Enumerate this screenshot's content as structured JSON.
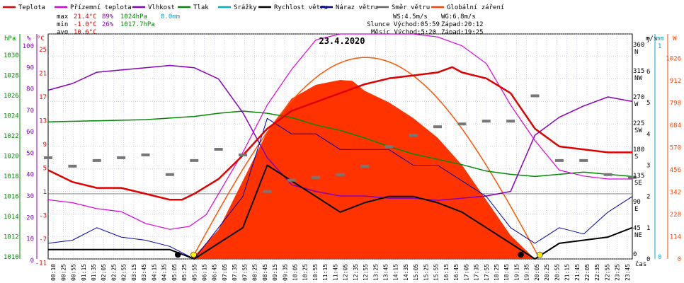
{
  "chart_data": {
    "type": "line",
    "title": "23.4.2020",
    "legend": [
      {
        "label": "Teplota",
        "color": "#e00000"
      },
      {
        "label": "Přízemní teplota",
        "color": "#dd00dd"
      },
      {
        "label": "Vlhkost",
        "color": "#8800bb"
      },
      {
        "label": "Tlak",
        "color": "#008800"
      },
      {
        "label": "Srážky",
        "color": "#00aacc"
      },
      {
        "label": "Rychlost větru",
        "color": "#000000"
      },
      {
        "label": "Náraz větru",
        "color": "#0000aa"
      },
      {
        "label": "Směr větru",
        "color": "#666666"
      },
      {
        "label": "Globální záření",
        "color": "#ff4400"
      }
    ],
    "stats": {
      "max": {
        "label": "max",
        "temp": "21.4°C",
        "hum": "89%",
        "press": "1024hPa",
        "rain": "0.0mm"
      },
      "min": {
        "label": "min",
        "temp": "-1.0°C",
        "hum": "26%",
        "press": "1017.7hPa"
      },
      "avg": {
        "label": "avg",
        "temp": "10.6°C"
      }
    },
    "info": {
      "ws": "WS:4.5m/s",
      "wg": "WG:6.8m/s",
      "sun": "Slunce Východ:05:59",
      "sunset": "Západ:20:12",
      "moon": "Měsíc Východ:5:20",
      "moonset": "Západ:19:25"
    },
    "axes": {
      "left_units": {
        "hpa": "hPa",
        "pct": "%",
        "degc": "°C"
      },
      "right_units": {
        "ms": "m/s",
        "mm": "mm",
        "w": "W"
      },
      "x_label": "čas",
      "hpa_ticks": [
        "1030",
        "1028",
        "1026",
        "1024",
        "1022",
        "1020",
        "1018",
        "1016",
        "1014",
        "1012",
        "1010"
      ],
      "pct_ticks": [
        "100",
        "90",
        "80",
        "70",
        "60",
        "50",
        "40",
        "30",
        "20",
        "10",
        "0"
      ],
      "degc_ticks": [
        "25",
        "21",
        "17",
        "13",
        "9",
        "5",
        "1",
        "-3",
        "-7",
        "-11"
      ],
      "degc_extra": [
        "23",
        "19",
        "15",
        "11",
        "7",
        "3",
        "-1",
        "-5",
        "-9"
      ],
      "dir_ticks": [
        {
          "deg": "360",
          "lbl": "N"
        },
        {
          "deg": "315",
          "lbl": "NW"
        },
        {
          "deg": "270",
          "lbl": "W"
        },
        {
          "deg": "225",
          "lbl": "SW"
        },
        {
          "deg": "180",
          "lbl": "S"
        },
        {
          "deg": "135",
          "lbl": "SE"
        },
        {
          "deg": "90",
          "lbl": "E"
        },
        {
          "deg": "45",
          "lbl": "NE"
        },
        {
          "deg": "0",
          "lbl": ""
        }
      ],
      "ms_ticks": [
        "7",
        "6",
        "5",
        "4",
        "3",
        "2",
        "1",
        "0"
      ],
      "mm_ticks": [
        "1",
        "0"
      ],
      "w_ticks": [
        "1026",
        "912",
        "798",
        "684",
        "570",
        "456",
        "342",
        "228",
        "114",
        "0"
      ],
      "x_ticks": [
        "00:10",
        "00:25",
        "00:55",
        "01:15",
        "01:35",
        "02:05",
        "02:25",
        "02:55",
        "03:15",
        "03:45",
        "04:15",
        "04:35",
        "05:05",
        "05:25",
        "05:55",
        "06:15",
        "06:45",
        "07:05",
        "07:35",
        "07:55",
        "08:25",
        "08:45",
        "09:15",
        "09:35",
        "10:05",
        "10:25",
        "10:55",
        "11:15",
        "11:45",
        "12:05",
        "12:35",
        "12:55",
        "13:25",
        "13:45",
        "14:15",
        "14:35",
        "15:05",
        "15:25",
        "15:55",
        "16:15",
        "16:45",
        "17:05",
        "17:35",
        "17:55",
        "18:25",
        "18:45",
        "19:15",
        "19:35",
        "20:05",
        "20:25",
        "20:55",
        "21:15",
        "21:45",
        "22:05",
        "22:35",
        "22:55",
        "23:25",
        "23:45"
      ]
    },
    "series": [
      {
        "name": "Teplota",
        "unit": "°C",
        "points": [
          [
            0,
            4
          ],
          [
            1,
            2
          ],
          [
            2,
            1
          ],
          [
            3,
            1
          ],
          [
            4,
            0
          ],
          [
            5,
            -1
          ],
          [
            5.5,
            -1
          ],
          [
            6,
            0
          ],
          [
            7,
            2.5
          ],
          [
            8,
            6.5
          ],
          [
            9,
            11
          ],
          [
            10,
            14
          ],
          [
            11,
            15.5
          ],
          [
            12,
            17
          ],
          [
            13,
            18.5
          ],
          [
            14,
            19.5
          ],
          [
            15,
            20
          ],
          [
            16,
            20.5
          ],
          [
            16.6,
            21.4
          ],
          [
            17,
            20.5
          ],
          [
            18,
            19.5
          ],
          [
            19,
            17
          ],
          [
            20,
            11
          ],
          [
            21,
            8
          ],
          [
            22,
            7.5
          ],
          [
            23,
            7
          ],
          [
            24,
            7
          ]
        ]
      },
      {
        "name": "Přízemní teplota",
        "unit": "°C",
        "points": [
          [
            0,
            -1
          ],
          [
            1,
            -1.5
          ],
          [
            2,
            -2.5
          ],
          [
            3,
            -3
          ],
          [
            4,
            -5
          ],
          [
            5,
            -6
          ],
          [
            5.8,
            -5.5
          ],
          [
            6.5,
            -3.5
          ],
          [
            7,
            0
          ],
          [
            8,
            7
          ],
          [
            9,
            15
          ],
          [
            10,
            21
          ],
          [
            11,
            26
          ],
          [
            12,
            27
          ],
          [
            13,
            27
          ],
          [
            14,
            27
          ],
          [
            15,
            27
          ],
          [
            16,
            26.5
          ],
          [
            17,
            25
          ],
          [
            18,
            22
          ],
          [
            19,
            15
          ],
          [
            20,
            9
          ],
          [
            21,
            4
          ],
          [
            22,
            3
          ],
          [
            23,
            2.5
          ],
          [
            24,
            2.5
          ]
        ]
      },
      {
        "name": "Vlhkost",
        "unit": "%",
        "points": [
          [
            0,
            75
          ],
          [
            1,
            78
          ],
          [
            2,
            83
          ],
          [
            3,
            84
          ],
          [
            4,
            85
          ],
          [
            5,
            86
          ],
          [
            6,
            85
          ],
          [
            7,
            80
          ],
          [
            8,
            65
          ],
          [
            9,
            45
          ],
          [
            10,
            33
          ],
          [
            11,
            30
          ],
          [
            12,
            28
          ],
          [
            13,
            28
          ],
          [
            14,
            27
          ],
          [
            15,
            27
          ],
          [
            16,
            26
          ],
          [
            17,
            27
          ],
          [
            18,
            28
          ],
          [
            19,
            30
          ],
          [
            20,
            55
          ],
          [
            21,
            63
          ],
          [
            22,
            68
          ],
          [
            23,
            72
          ],
          [
            24,
            70
          ]
        ]
      },
      {
        "name": "Tlak",
        "unit": "hPa",
        "points": [
          [
            0,
            1022.8
          ],
          [
            2,
            1022.9
          ],
          [
            4,
            1023.0
          ],
          [
            6,
            1023.3
          ],
          [
            7,
            1023.6
          ],
          [
            8,
            1023.8
          ],
          [
            9,
            1023.6
          ],
          [
            10,
            1023.2
          ],
          [
            11,
            1022.5
          ],
          [
            12,
            1022.0
          ],
          [
            13,
            1021.3
          ],
          [
            14,
            1020.5
          ],
          [
            15,
            1019.8
          ],
          [
            16,
            1019.3
          ],
          [
            17,
            1018.8
          ],
          [
            18,
            1018.2
          ],
          [
            19,
            1017.9
          ],
          [
            20,
            1017.7
          ],
          [
            21,
            1017.9
          ],
          [
            22,
            1018.1
          ],
          [
            23,
            1017.9
          ],
          [
            24,
            1017.7
          ]
        ]
      },
      {
        "name": "Rychlost větru",
        "unit": "m/s",
        "points": [
          [
            0,
            0.3
          ],
          [
            5,
            0.3
          ],
          [
            6,
            0
          ],
          [
            7,
            0.5
          ],
          [
            8,
            1
          ],
          [
            8.5,
            2
          ],
          [
            9,
            3
          ],
          [
            10,
            2.5
          ],
          [
            11,
            2
          ],
          [
            12,
            1.5
          ],
          [
            13,
            1.8
          ],
          [
            14,
            2
          ],
          [
            15,
            2
          ],
          [
            16,
            1.8
          ],
          [
            17,
            1.5
          ],
          [
            18,
            1
          ],
          [
            19,
            0.5
          ],
          [
            20,
            0
          ],
          [
            21,
            0.5
          ],
          [
            22,
            0.6
          ],
          [
            23,
            0.7
          ],
          [
            24,
            1
          ]
        ]
      },
      {
        "name": "Náraz větru",
        "unit": "m/s",
        "points": [
          [
            0,
            0.5
          ],
          [
            1,
            0.6
          ],
          [
            2,
            1
          ],
          [
            3,
            0.7
          ],
          [
            4,
            0.6
          ],
          [
            5,
            0.4
          ],
          [
            6,
            0
          ],
          [
            7,
            1
          ],
          [
            8,
            2
          ],
          [
            9,
            4.5
          ],
          [
            10,
            4
          ],
          [
            11,
            4
          ],
          [
            12,
            3.5
          ],
          [
            13,
            3.5
          ],
          [
            14,
            3.5
          ],
          [
            15,
            3
          ],
          [
            16,
            3
          ],
          [
            17,
            2.5
          ],
          [
            18,
            2
          ],
          [
            19,
            1
          ],
          [
            20,
            0.5
          ],
          [
            21,
            1
          ],
          [
            22,
            0.8
          ],
          [
            23,
            1.5
          ],
          [
            24,
            2
          ]
        ]
      },
      {
        "name": "Globální záření",
        "unit": "W",
        "points": [
          [
            5.9,
            0
          ],
          [
            7,
            150
          ],
          [
            8,
            400
          ],
          [
            9,
            650
          ],
          [
            10,
            820
          ],
          [
            11,
            890
          ],
          [
            12,
            915
          ],
          [
            12.5,
            910
          ],
          [
            13,
            860
          ],
          [
            14,
            800
          ],
          [
            15,
            720
          ],
          [
            16,
            620
          ],
          [
            17,
            480
          ],
          [
            18,
            300
          ],
          [
            19,
            120
          ],
          [
            20,
            0
          ]
        ]
      },
      {
        "name": "Směr větru",
        "unit": "°",
        "points": [
          [
            0,
            180
          ],
          [
            1,
            165
          ],
          [
            2,
            175
          ],
          [
            3,
            180
          ],
          [
            4,
            185
          ],
          [
            5,
            150
          ],
          [
            6,
            175
          ],
          [
            7,
            195
          ],
          [
            8,
            185
          ],
          [
            9,
            120
          ],
          [
            10,
            140
          ],
          [
            11,
            145
          ],
          [
            12,
            150
          ],
          [
            13,
            165
          ],
          [
            14,
            200
          ],
          [
            15,
            220
          ],
          [
            16,
            235
          ],
          [
            17,
            240
          ],
          [
            18,
            245
          ],
          [
            19,
            245
          ],
          [
            20,
            290
          ],
          [
            21,
            175
          ],
          [
            22,
            175
          ],
          [
            23,
            150
          ],
          [
            24,
            145
          ]
        ]
      }
    ],
    "y_ranges": {
      "degc": [
        -11,
        27
      ],
      "pct": [
        0,
        100
      ],
      "hpa": [
        1010,
        1031
      ],
      "ms": [
        0,
        7.2
      ],
      "mm": [
        0,
        1.2
      ],
      "w": [
        0,
        1150
      ],
      "deg": [
        0,
        400
      ]
    }
  }
}
